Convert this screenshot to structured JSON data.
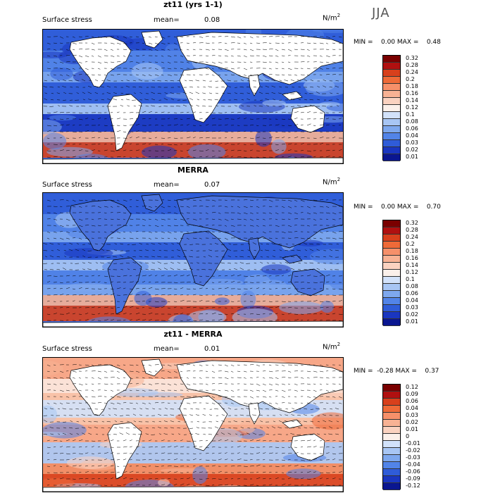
{
  "season": "JJA",
  "panels": [
    {
      "title": "zt11 (yrs 1-1)",
      "variable": "Surface stress",
      "mean_label": "mean=",
      "mean_value": "0.08",
      "unit": "N/m",
      "unit_exp": "2",
      "minmax": "MIN =    0.00 MAX =    0.48",
      "levels": [
        "0.32",
        "0.28",
        "0.24",
        "0.2",
        "0.18",
        "0.16",
        "0.14",
        "0.12",
        "0.1",
        "0.08",
        "0.06",
        "0.04",
        "0.03",
        "0.02",
        "0.01"
      ]
    },
    {
      "title": "MERRA",
      "variable": "Surface stress",
      "mean_label": "mean=",
      "mean_value": "0.07",
      "unit": "N/m",
      "unit_exp": "2",
      "minmax": "MIN =    0.00 MAX =    0.70",
      "levels": [
        "0.32",
        "0.28",
        "0.24",
        "0.2",
        "0.18",
        "0.16",
        "0.14",
        "0.12",
        "0.1",
        "0.08",
        "0.06",
        "0.04",
        "0.03",
        "0.02",
        "0.01"
      ]
    },
    {
      "title": "zt11 - MERRA",
      "variable": "Surface stress",
      "mean_label": "mean=",
      "mean_value": "0.01",
      "unit": "N/m",
      "unit_exp": "2",
      "minmax": "MIN =  -0.28 MAX =    0.37",
      "levels": [
        "0.12",
        "0.09",
        "0.06",
        "0.04",
        "0.03",
        "0.02",
        "0.01",
        "0",
        "-0.01",
        "-0.02",
        "-0.03",
        "-0.04",
        "-0.06",
        "-0.09",
        "-0.12"
      ]
    }
  ],
  "colorbar_colors": [
    "#7a0000",
    "#b01010",
    "#d8401c",
    "#ee6a38",
    "#f6906a",
    "#f8b294",
    "#fad2c0",
    "#fbf0ea",
    "#d2e2fa",
    "#a8c6f4",
    "#7ea8ee",
    "#5284e8",
    "#2f5cd8",
    "#1a36c0",
    "#0a1690"
  ]
}
